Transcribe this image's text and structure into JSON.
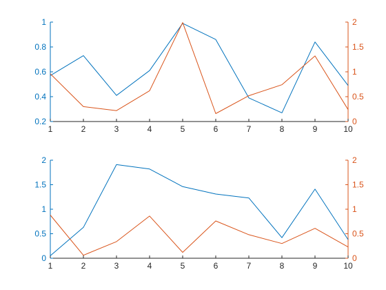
{
  "chart_data": [
    {
      "type": "line",
      "x": [
        1,
        2,
        3,
        4,
        5,
        6,
        7,
        8,
        9,
        10
      ],
      "xlim": [
        1,
        10
      ],
      "xticks": [
        "1",
        "2",
        "3",
        "4",
        "5",
        "6",
        "7",
        "8",
        "9",
        "10"
      ],
      "grid": false,
      "y_left": {
        "color": "#0072BD",
        "ylim": [
          0.2,
          1.0
        ],
        "ticks": [
          "0.2",
          "0.4",
          "0.6",
          "0.8",
          "1"
        ],
        "tick_values": [
          0.2,
          0.4,
          0.6,
          0.8,
          1.0
        ]
      },
      "y_right": {
        "color": "#D95319",
        "ylim": [
          0,
          2
        ],
        "ticks": [
          "0",
          "0.5",
          "1",
          "1.5",
          "2"
        ],
        "tick_values": [
          0,
          0.5,
          1,
          1.5,
          2
        ]
      },
      "series": [
        {
          "axis": "left",
          "color": "#0072BD",
          "values": [
            0.57,
            0.73,
            0.41,
            0.61,
            0.99,
            0.86,
            0.39,
            0.27,
            0.84,
            0.49
          ]
        },
        {
          "axis": "right",
          "color": "#D95319",
          "values": [
            0.96,
            0.3,
            0.22,
            0.62,
            1.99,
            0.16,
            0.52,
            0.74,
            1.32,
            0.24
          ]
        }
      ]
    },
    {
      "type": "line",
      "x": [
        1,
        2,
        3,
        4,
        5,
        6,
        7,
        8,
        9,
        10
      ],
      "xlim": [
        1,
        10
      ],
      "xticks": [
        "1",
        "2",
        "3",
        "4",
        "5",
        "6",
        "7",
        "8",
        "9",
        "10"
      ],
      "grid": false,
      "y_left": {
        "color": "#0072BD",
        "ylim": [
          0,
          2
        ],
        "ticks": [
          "0",
          "0.5",
          "1",
          "1.5",
          "2"
        ],
        "tick_values": [
          0,
          0.5,
          1,
          1.5,
          2
        ]
      },
      "y_right": {
        "color": "#D95319",
        "ylim": [
          0,
          2
        ],
        "ticks": [
          "0",
          "0.5",
          "1",
          "1.5",
          "2"
        ],
        "tick_values": [
          0,
          0.5,
          1,
          1.5,
          2
        ]
      },
      "series": [
        {
          "axis": "left",
          "color": "#0072BD",
          "values": [
            0.05,
            0.63,
            1.91,
            1.82,
            1.46,
            1.31,
            1.23,
            0.42,
            1.41,
            0.38
          ]
        },
        {
          "axis": "right",
          "color": "#D95319",
          "values": [
            0.88,
            0.06,
            0.34,
            0.86,
            0.12,
            0.76,
            0.48,
            0.3,
            0.61,
            0.23
          ]
        }
      ]
    }
  ]
}
